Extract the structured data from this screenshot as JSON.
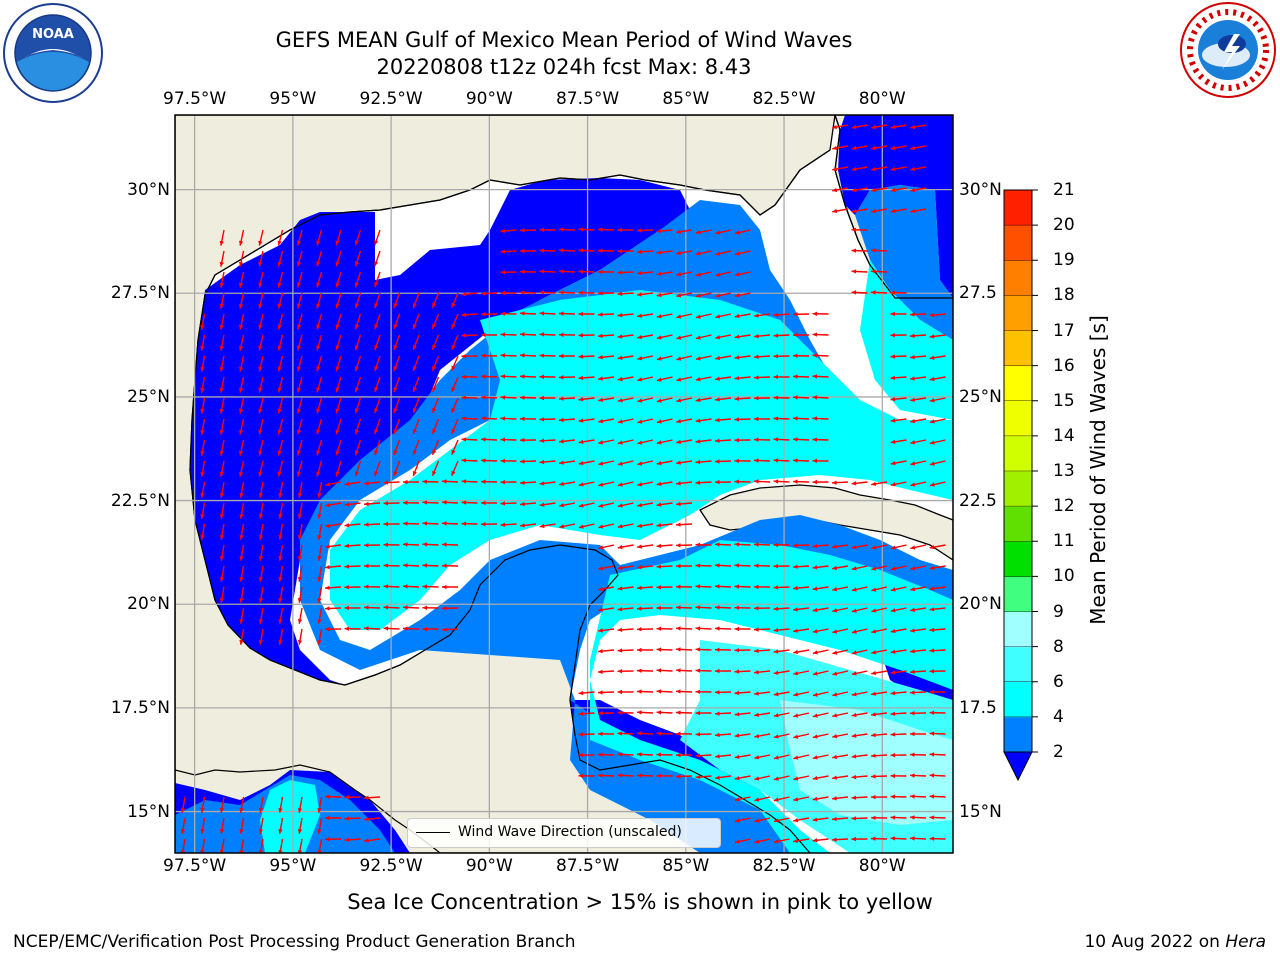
{
  "header": {
    "title_line1": "GEFS MEAN Gulf of Mexico Mean Period of Wind Waves",
    "title_line2": "20220808 t12z 024h fcst   Max: 8.43"
  },
  "logos": {
    "left": "noaa-logo",
    "right": "national-weather-service-logo"
  },
  "map": {
    "lon_labels": [
      "97.5°W",
      "95°W",
      "92.5°W",
      "90°W",
      "87.5°W",
      "85°W",
      "82.5°W",
      "80°W"
    ],
    "lat_labels_left": [
      "30°N",
      "27.5°N",
      "25°N",
      "22.5°N",
      "20°N",
      "17.5°N",
      "15°N"
    ],
    "lat_labels_right": [
      "30°N",
      "27.5",
      "25°N",
      "22.5",
      "20°N",
      "17.5",
      "15°N"
    ],
    "extent": {
      "lon_min": -98.0,
      "lon_max": -78.2,
      "lat_min": 14.0,
      "lat_max": 31.8
    },
    "gridlines": true,
    "land_color": "#efedde",
    "vector_color": "#ff0000",
    "legend": {
      "label": "Wind Wave Direction (unscaled)",
      "position": "lower-center"
    }
  },
  "colorbar": {
    "label": "Mean Period of Wind Waves [s]",
    "ticks": [
      "21",
      "20",
      "19",
      "18",
      "17",
      "16",
      "15",
      "14",
      "13",
      "12",
      "11",
      "10",
      "9",
      "8",
      "6",
      "4",
      "2"
    ],
    "bands": [
      {
        "from": 2,
        "to": 4,
        "color": "#0080ff"
      },
      {
        "from": 4,
        "to": 6,
        "color": "#00ffff"
      },
      {
        "from": 6,
        "to": 8,
        "color": "#40ffff"
      },
      {
        "from": 8,
        "to": 9,
        "color": "#a0ffff"
      },
      {
        "from": 9,
        "to": 10,
        "color": "#40ff80"
      },
      {
        "from": 10,
        "to": 11,
        "color": "#00e000"
      },
      {
        "from": 11,
        "to": 12,
        "color": "#60e000"
      },
      {
        "from": 12,
        "to": 13,
        "color": "#a0f000"
      },
      {
        "from": 13,
        "to": 14,
        "color": "#d0ff00"
      },
      {
        "from": 14,
        "to": 15,
        "color": "#f0ff00"
      },
      {
        "from": 15,
        "to": 16,
        "color": "#ffff00"
      },
      {
        "from": 16,
        "to": 17,
        "color": "#ffc000"
      },
      {
        "from": 17,
        "to": 18,
        "color": "#ffa000"
      },
      {
        "from": 18,
        "to": 19,
        "color": "#ff8000"
      },
      {
        "from": 19,
        "to": 20,
        "color": "#ff5000"
      },
      {
        "from": 20,
        "to": 21,
        "color": "#ff2000"
      }
    ],
    "extend_below_color": "#0000ff"
  },
  "field": {
    "description_units": "s",
    "level_colors": {
      "lt2": "#0000ff",
      "2to4": "#0080ff",
      "4to6": "#00ffff",
      "6to8": "#40ffff",
      "8to9": "#a0ffff"
    }
  },
  "note": "Sea Ice Concentration > 15% is shown in pink to yellow",
  "footer": {
    "left": "NCEP/EMC/Verification Post Processing Product Generation Branch",
    "right_date": "10 Aug 2022 on",
    "right_machine": "Hera"
  }
}
